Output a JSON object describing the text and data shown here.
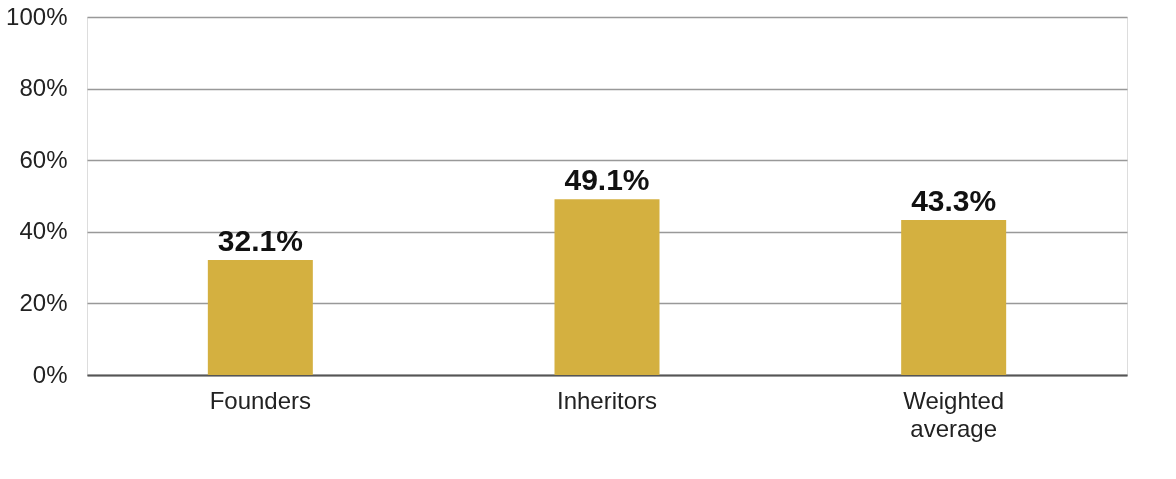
{
  "chart_data": {
    "type": "bar",
    "categories": [
      "Founders",
      "Inheritors",
      "Weighted average"
    ],
    "values": [
      32.1,
      49.1,
      43.3
    ],
    "value_labels": [
      "32.1%",
      "49.1%",
      "43.3%"
    ],
    "color": "#d4b040",
    "ylim": [
      0,
      100
    ],
    "yticks": [
      {
        "value": 0,
        "label": "0%"
      },
      {
        "value": 20,
        "label": "20%"
      },
      {
        "value": 40,
        "label": "40%"
      },
      {
        "value": 60,
        "label": "60%"
      },
      {
        "value": 80,
        "label": "80%"
      },
      {
        "value": 100,
        "label": "100%"
      }
    ],
    "grid": "y"
  }
}
